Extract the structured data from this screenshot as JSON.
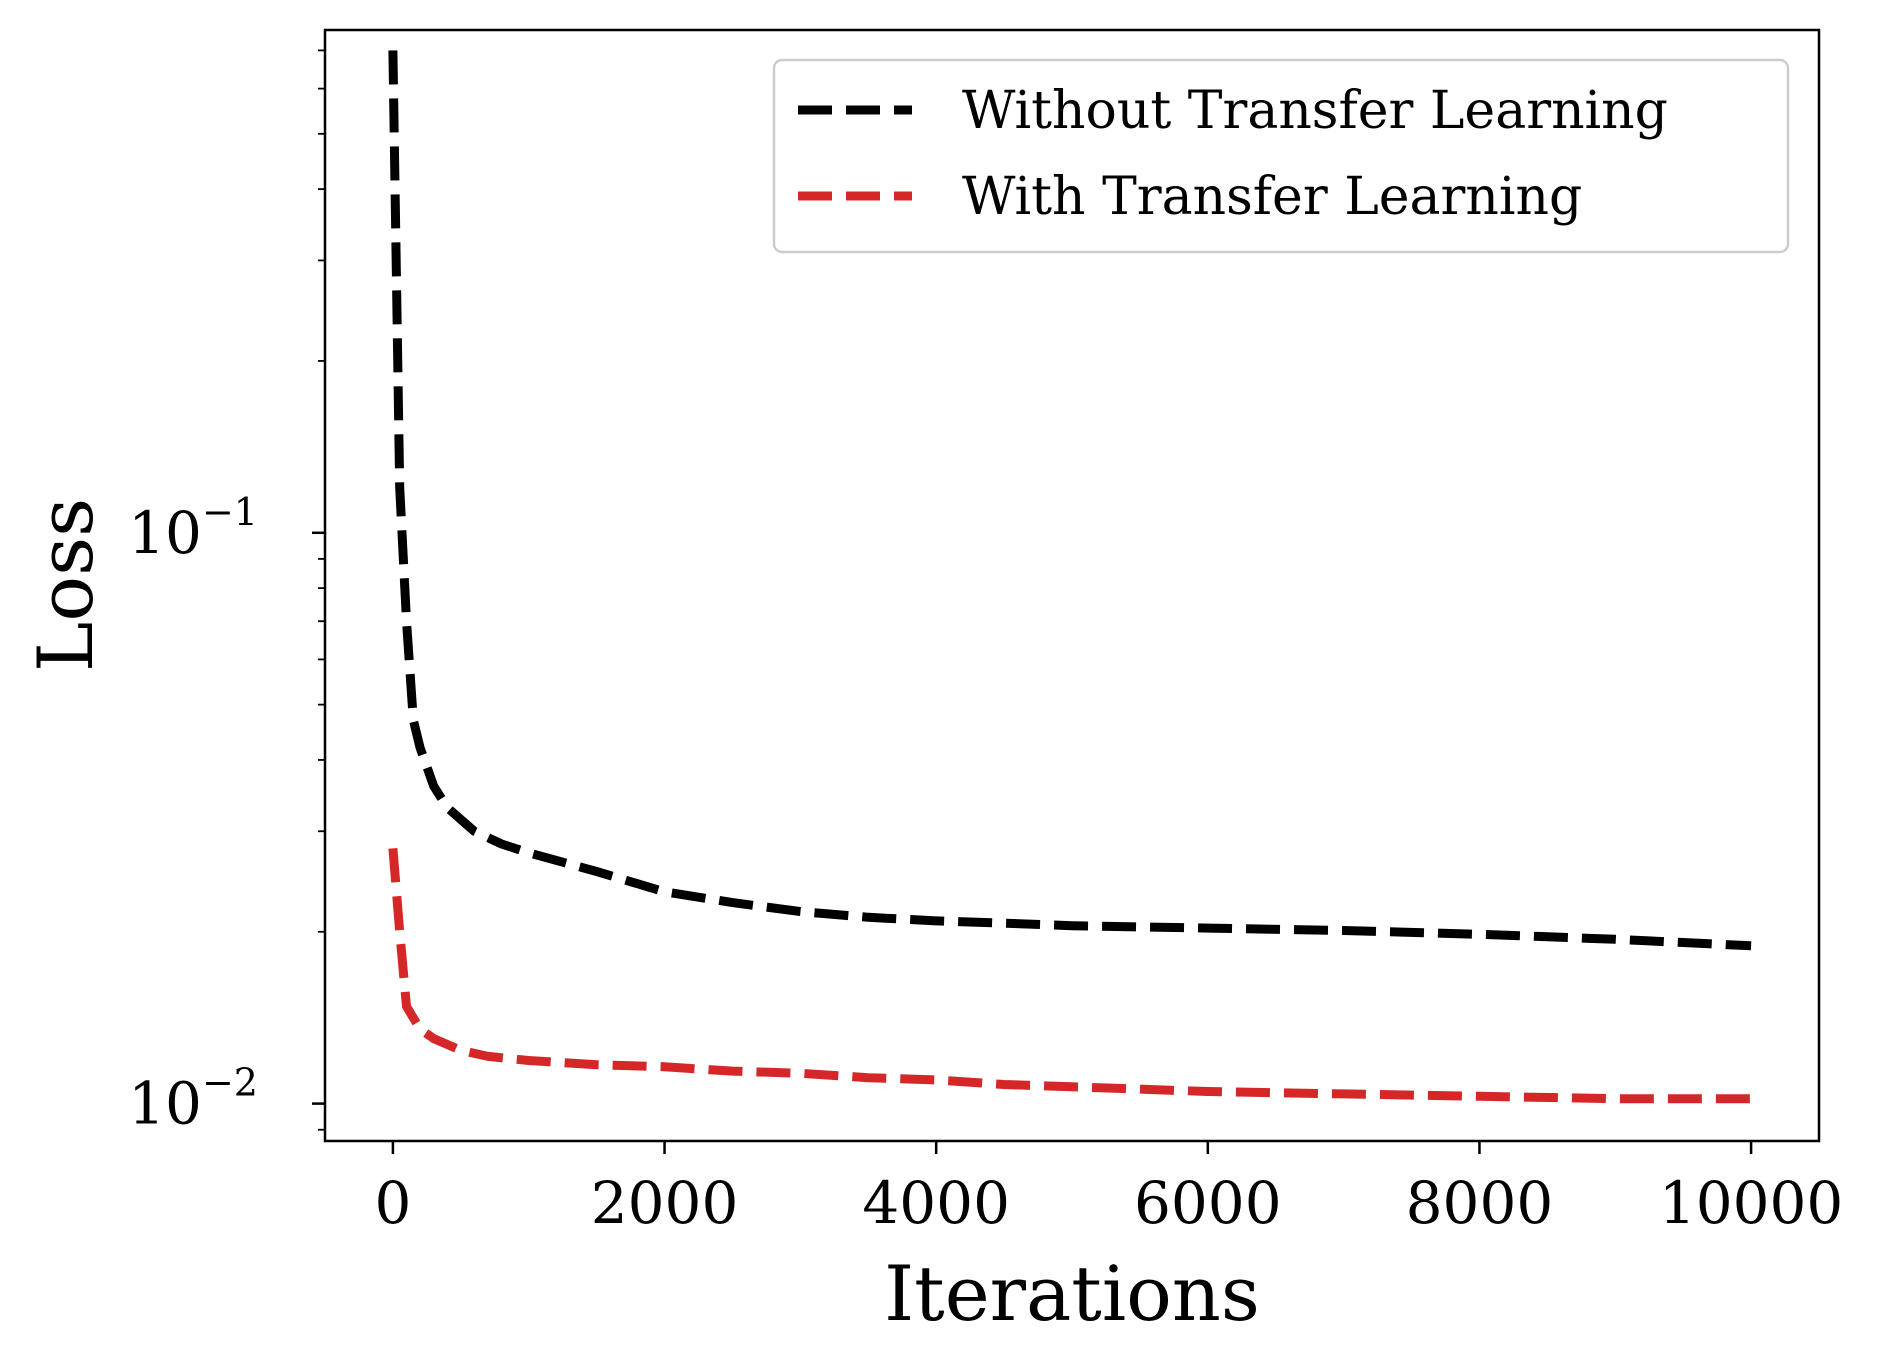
{
  "chart_data": {
    "type": "line",
    "xlabel": "Iterations",
    "ylabel": "Loss",
    "xlim": [
      -500,
      10500
    ],
    "ylim": [
      0.0086,
      0.76
    ],
    "yscale": "log",
    "grid": false,
    "legend_position": "top-right",
    "xticks": [
      {
        "value": 0,
        "label": "0"
      },
      {
        "value": 2000,
        "label": "2000"
      },
      {
        "value": 4000,
        "label": "4000"
      },
      {
        "value": 6000,
        "label": "6000"
      },
      {
        "value": 8000,
        "label": "8000"
      },
      {
        "value": 10000,
        "label": "10000"
      }
    ],
    "yticks": [
      {
        "value": 0.01,
        "base": "10",
        "exponent": "−2"
      },
      {
        "value": 0.1,
        "base": "10",
        "exponent": "−1"
      }
    ],
    "series": [
      {
        "name": "Without Transfer Learning",
        "color": "#000000",
        "x": [
          0,
          50,
          100,
          150,
          200,
          300,
          400,
          600,
          800,
          1000,
          1500,
          2000,
          2500,
          3000,
          3500,
          4000,
          4500,
          5000,
          6000,
          7000,
          8000,
          9000,
          10000
        ],
        "y": [
          0.7,
          0.12,
          0.07,
          0.047,
          0.042,
          0.036,
          0.033,
          0.03,
          0.0285,
          0.0275,
          0.0255,
          0.0235,
          0.0225,
          0.0217,
          0.0212,
          0.0209,
          0.0207,
          0.0205,
          0.0203,
          0.0201,
          0.0198,
          0.0194,
          0.0189
        ]
      },
      {
        "name": "With Transfer Learning",
        "color": "#d62728",
        "x": [
          0,
          50,
          100,
          200,
          300,
          500,
          700,
          1000,
          1500,
          2000,
          2500,
          3000,
          3500,
          4000,
          4500,
          5000,
          6000,
          7000,
          8000,
          9000,
          10000
        ],
        "y": [
          0.028,
          0.02,
          0.0148,
          0.0135,
          0.013,
          0.0124,
          0.0121,
          0.0119,
          0.0117,
          0.0116,
          0.0114,
          0.0113,
          0.0111,
          0.011,
          0.0108,
          0.0107,
          0.0105,
          0.0104,
          0.0103,
          0.0102,
          0.0102
        ]
      }
    ]
  }
}
